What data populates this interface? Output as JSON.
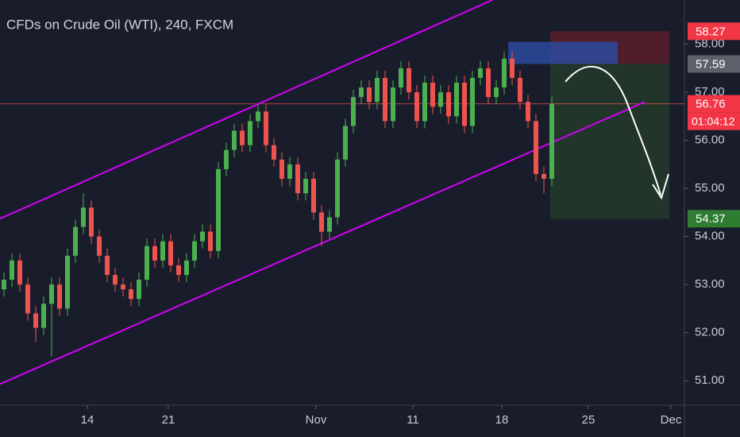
{
  "chart_data": {
    "type": "candlestick",
    "title": "CFDs on Crude Oil (WTI), 240, FXCM",
    "background": "#191d2b",
    "up_color": "#4caf50",
    "down_color": "#ef5350",
    "open": [
      52.9,
      53.1,
      53.5,
      53.0,
      52.4,
      52.1,
      52.6,
      53.0,
      52.5,
      53.6,
      54.2,
      54.6,
      54.0,
      53.6,
      53.2,
      53.0,
      52.9,
      52.7,
      53.1,
      53.8,
      53.5,
      53.9,
      53.4,
      53.2,
      53.5,
      53.9,
      54.1,
      53.7,
      55.4,
      55.8,
      56.2,
      55.9,
      56.4,
      56.6,
      55.9,
      55.6,
      55.2,
      55.5,
      54.9,
      55.2,
      54.5,
      54.1,
      54.4,
      55.6,
      56.3,
      56.9,
      57.1,
      56.8,
      57.3,
      56.4,
      57.1,
      57.5,
      57.0,
      56.4,
      57.2,
      56.7,
      57.0,
      56.5,
      57.2,
      56.3,
      57.3,
      57.5,
      56.9,
      57.1,
      57.7,
      57.3,
      56.8,
      56.4,
      55.3,
      55.2
    ],
    "high": [
      53.25,
      53.65,
      53.65,
      53.15,
      52.55,
      52.75,
      53.15,
      53.15,
      53.75,
      54.35,
      54.9,
      54.75,
      54.15,
      53.75,
      53.35,
      53.15,
      53.05,
      53.25,
      53.95,
      53.95,
      54.05,
      54.05,
      53.55,
      53.65,
      54.05,
      54.25,
      54.25,
      55.55,
      55.95,
      56.35,
      56.35,
      56.55,
      56.75,
      56.75,
      56.05,
      55.75,
      55.65,
      55.65,
      55.35,
      55.35,
      54.65,
      54.55,
      55.75,
      56.45,
      57.05,
      57.25,
      57.25,
      57.45,
      57.45,
      57.25,
      57.65,
      57.65,
      57.15,
      57.35,
      57.35,
      57.15,
      57.15,
      57.35,
      57.35,
      57.45,
      57.65,
      57.65,
      57.25,
      57.85,
      57.85,
      57.45,
      56.95,
      56.55,
      55.45,
      56.91
    ],
    "low": [
      52.75,
      52.95,
      52.85,
      52.25,
      51.8,
      51.95,
      51.5,
      52.35,
      52.35,
      53.45,
      54.05,
      53.85,
      53.45,
      53.05,
      52.85,
      52.75,
      52.55,
      52.55,
      52.95,
      53.35,
      53.35,
      53.25,
      53.05,
      53.05,
      53.35,
      53.75,
      53.55,
      53.55,
      55.25,
      55.65,
      55.75,
      55.75,
      56.25,
      55.75,
      55.45,
      55.05,
      55.05,
      54.75,
      54.75,
      54.35,
      53.8,
      53.95,
      54.25,
      55.45,
      56.15,
      56.75,
      56.65,
      56.65,
      56.25,
      56.25,
      56.95,
      56.85,
      56.25,
      56.25,
      56.55,
      56.55,
      56.35,
      56.35,
      56.15,
      56.15,
      57.15,
      56.75,
      56.75,
      56.95,
      57.15,
      56.65,
      56.25,
      55.15,
      54.9,
      55.05
    ],
    "close": [
      53.1,
      53.5,
      53.0,
      52.4,
      52.1,
      52.6,
      53.0,
      52.5,
      53.6,
      54.2,
      54.6,
      54.0,
      53.6,
      53.2,
      53.0,
      52.9,
      52.7,
      53.1,
      53.8,
      53.5,
      53.9,
      53.4,
      53.2,
      53.5,
      53.9,
      54.1,
      53.7,
      55.4,
      55.8,
      56.2,
      55.9,
      56.4,
      56.6,
      55.9,
      55.6,
      55.2,
      55.5,
      54.9,
      55.2,
      54.5,
      54.1,
      54.4,
      55.6,
      56.3,
      56.9,
      57.1,
      56.8,
      57.3,
      56.4,
      57.1,
      57.5,
      57.0,
      56.4,
      57.2,
      56.7,
      57.0,
      56.5,
      57.2,
      56.3,
      57.3,
      57.5,
      56.9,
      57.1,
      57.7,
      57.3,
      56.8,
      56.4,
      55.3,
      55.2,
      56.76
    ],
    "xlim": [
      -0.5,
      85.7
    ],
    "ylim": [
      50.49,
      58.92
    ],
    "xticks": [
      {
        "value": 10.5,
        "label": "14"
      },
      {
        "value": 20.7,
        "label": "21"
      },
      {
        "value": 39.3,
        "label": "Nov"
      },
      {
        "value": 51.5,
        "label": "11"
      },
      {
        "value": 62.7,
        "label": "18"
      },
      {
        "value": 73.6,
        "label": "25"
      },
      {
        "value": 84,
        "label": "Dec"
      }
    ],
    "yticks": [
      {
        "value": 51,
        "label": "51.00"
      },
      {
        "value": 52,
        "label": "52.00"
      },
      {
        "value": 53,
        "label": "53.00"
      },
      {
        "value": 54,
        "label": "54.00"
      },
      {
        "value": 55,
        "label": "55.00"
      },
      {
        "value": 56,
        "label": "56.00"
      },
      {
        "value": 57,
        "label": "57.00"
      },
      {
        "value": 58,
        "label": "58.00"
      }
    ],
    "channel_color": "#d500f9",
    "channel": [
      {
        "x": [
          -0.5,
          61.5
        ],
        "y": [
          54.37,
          58.92
        ]
      },
      {
        "x": [
          -0.5,
          80.7
        ],
        "y": [
          50.93,
          56.8
        ]
      }
    ],
    "zones": [
      {
        "x": [
          68.8,
          83.8
        ],
        "y": [
          57.59,
          58.27
        ],
        "color": "#5a1e2a"
      },
      {
        "x": [
          68.8,
          83.8
        ],
        "y": [
          54.37,
          57.59
        ],
        "color": "#233a2a"
      },
      {
        "x": [
          63.5,
          77.3
        ],
        "y": [
          57.59,
          58.05
        ],
        "color": "#2b4a9e"
      }
    ],
    "price_line": {
      "value": 56.76,
      "color": "#ef5350"
    },
    "price_labels": [
      {
        "value": 58.27,
        "label": "58.27",
        "color": "#f23645"
      },
      {
        "value": 57.59,
        "label": "57.59",
        "color": "#5d606b"
      },
      {
        "value": 56.76,
        "label": "56.76",
        "color": "#f23645"
      },
      {
        "value": 54.37,
        "label": "54.37",
        "color": "#2e7d32"
      }
    ],
    "countdown": "01:04:12"
  }
}
